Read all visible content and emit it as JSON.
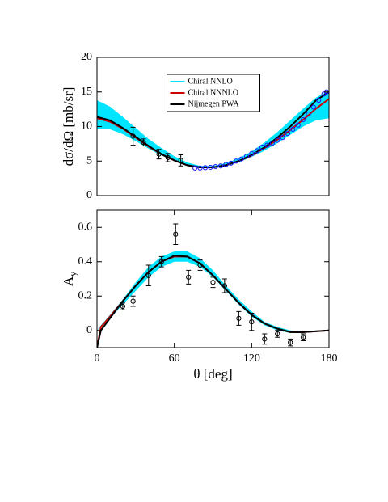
{
  "chart_data": [
    {
      "type": "line",
      "y_label": "dσ/dΩ  [mb/sr]",
      "xlim": [
        0,
        180
      ],
      "ylim": [
        0,
        20
      ],
      "yticks": [
        0,
        5,
        10,
        15,
        20
      ],
      "legend": "upper center",
      "x": [
        0,
        10,
        20,
        30,
        40,
        50,
        60,
        70,
        80,
        90,
        100,
        110,
        120,
        130,
        140,
        150,
        160,
        170,
        180
      ],
      "series": [
        {
          "name": "Chiral NNLO",
          "color": "#00e5ff",
          "lower": [
            9.6,
            9.6,
            8.9,
            7.9,
            6.8,
            5.8,
            5.0,
            4.3,
            4.0,
            4.0,
            4.3,
            4.8,
            5.6,
            6.5,
            7.6,
            8.8,
            10.0,
            10.9,
            11.2
          ],
          "upper": [
            13.8,
            12.9,
            11.4,
            9.8,
            8.2,
            6.9,
            5.7,
            4.8,
            4.3,
            4.3,
            4.7,
            5.4,
            6.4,
            7.7,
            9.2,
            10.9,
            12.6,
            14.2,
            15.2
          ]
        },
        {
          "name": "Chiral NNNLO",
          "color": "#cc0000",
          "values": [
            11.2,
            10.7,
            9.7,
            8.4,
            7.1,
            6.0,
            5.1,
            4.4,
            4.1,
            4.1,
            4.4,
            5.0,
            5.8,
            6.9,
            8.1,
            9.5,
            11.0,
            12.6,
            14.0
          ]
        },
        {
          "name": "Nijmegen PWA",
          "color": "#000000",
          "values": [
            11.4,
            10.9,
            9.8,
            8.5,
            7.2,
            6.0,
            5.1,
            4.4,
            4.1,
            4.1,
            4.4,
            5.0,
            5.9,
            7.0,
            8.4,
            10.0,
            11.8,
            13.8,
            15.0
          ]
        }
      ],
      "points": [
        {
          "color": "#000000",
          "x": [
            28,
            36,
            48,
            55,
            65
          ],
          "values": [
            8.6,
            7.7,
            6.0,
            5.5,
            5.1
          ],
          "errors": [
            1.3,
            0.5,
            0.7,
            0.6,
            0.8
          ]
        },
        {
          "color": "#1a1aff",
          "x": [
            76,
            80,
            84,
            88,
            92,
            96,
            100,
            104,
            108,
            112,
            116,
            120,
            124,
            128,
            132,
            136,
            140,
            144,
            148,
            152,
            156,
            160,
            164,
            168,
            172,
            176,
            178
          ],
          "values": [
            4.0,
            4.0,
            4.05,
            4.1,
            4.2,
            4.3,
            4.5,
            4.7,
            5.0,
            5.3,
            5.7,
            6.1,
            6.5,
            7.0,
            7.3,
            7.6,
            8.0,
            8.4,
            9.0,
            9.6,
            10.2,
            11.0,
            11.8,
            12.8,
            13.8,
            14.7,
            15.0
          ]
        }
      ]
    },
    {
      "type": "line",
      "y_label": "Ay",
      "x_label": "θ  [deg]",
      "xlim": [
        0,
        180
      ],
      "xticks": [
        0,
        60,
        120,
        180
      ],
      "ylim": [
        -0.1,
        0.7
      ],
      "yticks": [
        0,
        0.2,
        0.4,
        0.6
      ],
      "x": [
        0,
        3,
        10,
        20,
        30,
        40,
        50,
        60,
        70,
        80,
        90,
        100,
        110,
        120,
        130,
        140,
        150,
        160,
        170,
        180
      ],
      "series": [
        {
          "name": "Chiral NNLO",
          "color": "#00e5ff",
          "lower": [
            0.0,
            0.02,
            0.07,
            0.15,
            0.23,
            0.31,
            0.37,
            0.4,
            0.4,
            0.37,
            0.31,
            0.23,
            0.15,
            0.08,
            0.03,
            0.0,
            -0.015,
            -0.015,
            -0.005,
            0
          ],
          "upper": [
            0.0,
            0.03,
            0.09,
            0.18,
            0.28,
            0.37,
            0.43,
            0.46,
            0.46,
            0.42,
            0.35,
            0.26,
            0.18,
            0.11,
            0.05,
            0.02,
            0.0,
            -0.005,
            0.0,
            0
          ]
        },
        {
          "name": "Chiral NNNLO",
          "color": "#cc0000",
          "values": [
            -0.1,
            0.02,
            0.08,
            0.17,
            0.26,
            0.34,
            0.4,
            0.43,
            0.43,
            0.39,
            0.32,
            0.24,
            0.16,
            0.09,
            0.04,
            0.01,
            -0.01,
            -0.01,
            -0.005,
            0
          ]
        },
        {
          "name": "Nijmegen PWA",
          "color": "#000000",
          "values": [
            -0.1,
            0.0,
            0.07,
            0.17,
            0.26,
            0.34,
            0.4,
            0.435,
            0.43,
            0.39,
            0.32,
            0.24,
            0.16,
            0.09,
            0.04,
            0.01,
            -0.01,
            -0.01,
            -0.005,
            0
          ]
        }
      ],
      "points": [
        {
          "color": "#000000",
          "x": [
            20,
            28,
            40,
            50,
            61,
            71,
            80,
            90,
            99,
            110,
            120,
            130,
            140,
            150,
            160
          ],
          "values": [
            0.14,
            0.17,
            0.32,
            0.4,
            0.56,
            0.31,
            0.38,
            0.28,
            0.26,
            0.07,
            0.05,
            -0.05,
            -0.02,
            -0.07,
            -0.04
          ],
          "errors": [
            0.02,
            0.03,
            0.06,
            0.03,
            0.06,
            0.04,
            0.03,
            0.03,
            0.04,
            0.04,
            0.05,
            0.03,
            0.02,
            0.02,
            0.02
          ]
        }
      ]
    }
  ]
}
